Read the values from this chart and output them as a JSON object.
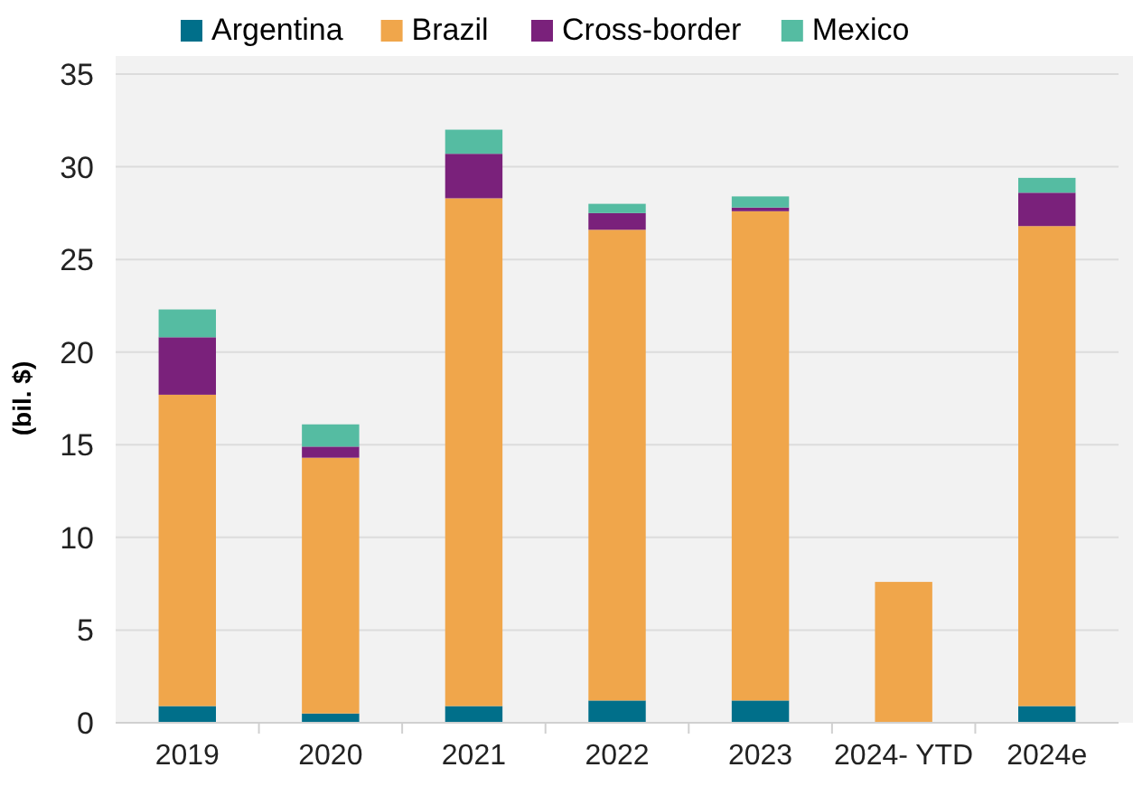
{
  "chart_data": {
    "type": "bar",
    "stacked": true,
    "ylabel": "(bil. $)",
    "categories": [
      "2019",
      "2020",
      "2021",
      "2022",
      "2023",
      "2024- YTD",
      "2024e"
    ],
    "series": [
      {
        "name": "Argentina",
        "color": "#006f8a",
        "values": [
          0.9,
          0.5,
          0.9,
          1.2,
          1.2,
          0,
          0.9
        ]
      },
      {
        "name": "Brazil",
        "color": "#f0a64b",
        "values": [
          16.8,
          13.8,
          27.4,
          25.4,
          26.4,
          7.6,
          25.9
        ]
      },
      {
        "name": "Cross-border",
        "color": "#7a217b",
        "values": [
          3.1,
          0.6,
          2.4,
          0.9,
          0.2,
          0,
          1.8
        ]
      },
      {
        "name": "Mexico",
        "color": "#55bca2",
        "values": [
          1.5,
          1.2,
          1.3,
          0.5,
          0.6,
          0,
          0.8
        ]
      }
    ],
    "ylim": [
      0,
      35
    ],
    "yticks": [
      0,
      5,
      10,
      15,
      20,
      25,
      30,
      35
    ],
    "grid": "y",
    "legend": "top"
  }
}
